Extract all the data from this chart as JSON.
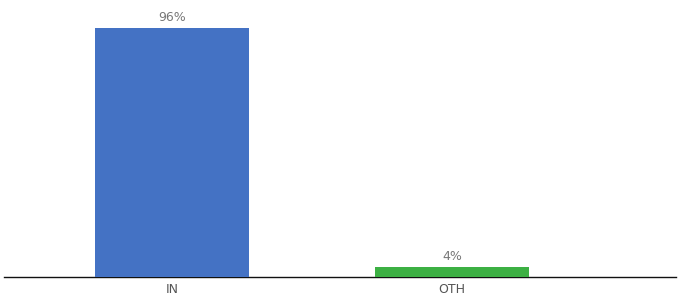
{
  "categories": [
    "IN",
    "OTH"
  ],
  "values": [
    96,
    4
  ],
  "bar_colors": [
    "#4472c4",
    "#3cb043"
  ],
  "bar_labels": [
    "96%",
    "4%"
  ],
  "ylim": [
    0,
    105
  ],
  "background_color": "#ffffff",
  "label_fontsize": 9,
  "tick_fontsize": 9,
  "bar_width": 0.55,
  "bar_positions": [
    1,
    2
  ],
  "xlim": [
    0.4,
    2.8
  ]
}
